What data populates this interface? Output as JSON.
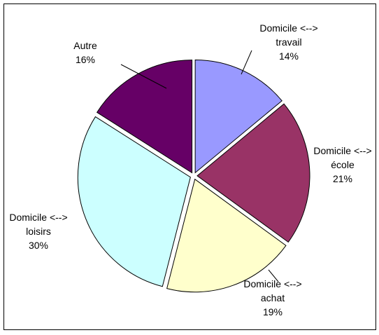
{
  "chart_data": {
    "type": "pie",
    "categories": [
      "Domicile <--> travail",
      "Domicile <--> école",
      "Domicile <--> achat",
      "Domicile <--> loisirs",
      "Autre"
    ],
    "values": [
      14,
      21,
      19,
      30,
      16
    ],
    "value_labels": [
      "14%",
      "21%",
      "19%",
      "30%",
      "16%"
    ],
    "colors": [
      "#9999ff",
      "#993366",
      "#ffffcc",
      "#ccffff",
      "#660066"
    ]
  }
}
